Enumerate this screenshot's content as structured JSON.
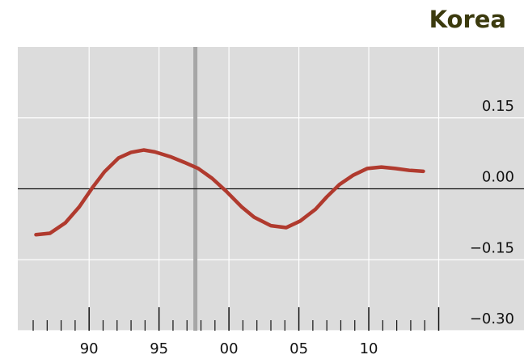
{
  "chart_data": {
    "type": "line",
    "title": "Korea",
    "x": [
      1986.2,
      1987.2,
      1988.3,
      1989.3,
      1990.3,
      1991.1,
      1992.1,
      1993,
      1993.9,
      1994.7,
      1995.8,
      1996.8,
      1997.8,
      1998.8,
      1999.8,
      2000.9,
      2001.8,
      2003,
      2004.1,
      2005.1,
      2006.2,
      2007,
      2007.9,
      2008.9,
      2009.9,
      2010.9,
      2011.9,
      2012.9,
      2013.9
    ],
    "series": [
      {
        "color": "#b03a2e",
        "values": [
          -0.097,
          -0.094,
          -0.072,
          -0.038,
          0.005,
          0.036,
          0.065,
          0.077,
          0.082,
          0.078,
          0.068,
          0.056,
          0.043,
          0.022,
          -0.005,
          -0.038,
          -0.06,
          -0.078,
          -0.082,
          -0.068,
          -0.043,
          -0.017,
          0.009,
          0.029,
          0.043,
          0.046,
          0.043,
          0.039,
          0.037
        ]
      }
    ],
    "xlim": [
      1984.9,
      2021.1
    ],
    "xticks": [
      {
        "value": 1990,
        "label": "90"
      },
      {
        "value": 1995,
        "label": "95"
      },
      {
        "value": 2000,
        "label": "00"
      },
      {
        "value": 2005,
        "label": "05"
      },
      {
        "value": 2010,
        "label": "10"
      },
      {
        "value": 2015,
        "label": null
      }
    ],
    "xminorticks": [
      1986,
      1987,
      1988,
      1989,
      1991,
      1992,
      1993,
      1994,
      1996,
      1997,
      1998,
      1999,
      2001,
      2002,
      2003,
      2004,
      2006,
      2007,
      2008,
      2009,
      2011,
      2012,
      2013,
      2014
    ],
    "ylim": [
      -0.3,
      0.3
    ],
    "yticks": [
      {
        "value": 0.15,
        "label": "0.15"
      },
      {
        "value": 0,
        "label": "0.00"
      },
      {
        "value": -0.15,
        "label": "−0.15"
      },
      {
        "value": -0.3,
        "label": "−0.30"
      }
    ],
    "vline_x": 1997.6,
    "grid": true
  }
}
